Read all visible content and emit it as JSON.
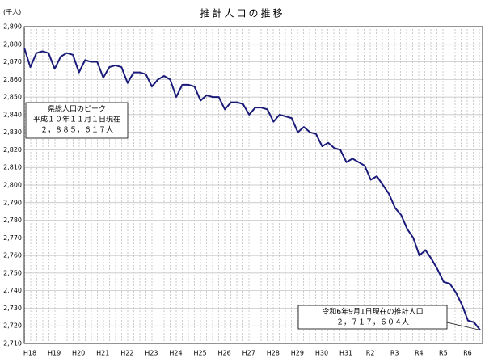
{
  "chart_data": {
    "type": "line",
    "title": "推計人口の推移",
    "y_unit_label": "(千人)",
    "categories": [
      "H18",
      null,
      null,
      null,
      "H19",
      null,
      null,
      null,
      "H20",
      null,
      null,
      null,
      "H21",
      null,
      null,
      null,
      "H22",
      null,
      null,
      null,
      "H23",
      null,
      null,
      null,
      "H24",
      null,
      null,
      null,
      "H25",
      null,
      null,
      null,
      "H26",
      null,
      null,
      null,
      "H27",
      null,
      null,
      null,
      "H28",
      null,
      null,
      null,
      "H29",
      null,
      null,
      null,
      "H30",
      null,
      null,
      null,
      "H31",
      null,
      null,
      null,
      "R2",
      null,
      null,
      null,
      "R3",
      null,
      null,
      null,
      "R4",
      null,
      null,
      null,
      "R5",
      null,
      null,
      null,
      "R6",
      null,
      null,
      null
    ],
    "values": [
      2878,
      2867,
      2875,
      2876,
      2875,
      2866,
      2873,
      2875,
      2874,
      2864,
      2871,
      2870,
      2870,
      2861,
      2867,
      2868,
      2867,
      2858,
      2864,
      2864,
      2863,
      2856,
      2860,
      2862,
      2860,
      2850,
      2857,
      2857,
      2856,
      2848,
      2851,
      2850,
      2850,
      2843,
      2847,
      2847,
      2846,
      2840,
      2844,
      2844,
      2843,
      2836,
      2840,
      2839,
      2838,
      2830,
      2833,
      2830,
      2829,
      2822,
      2824,
      2821,
      2820,
      2813,
      2815,
      2813,
      2811,
      2803,
      2805,
      2800,
      2795,
      2787,
      2783,
      2775,
      2770,
      2760,
      2763,
      2758,
      2752,
      2745,
      2744,
      2739,
      2732,
      2723,
      2722,
      2717.604
    ],
    "color": "#1a1a7a",
    "ylim": [
      2710,
      2890
    ],
    "yticks": [
      {
        "value": 2710,
        "label": "2,710"
      },
      {
        "value": 2720,
        "label": "2,720"
      },
      {
        "value": 2730,
        "label": "2,730"
      },
      {
        "value": 2740,
        "label": "2,740"
      },
      {
        "value": 2750,
        "label": "2,750"
      },
      {
        "value": 2760,
        "label": "2,760"
      },
      {
        "value": 2770,
        "label": "2,770"
      },
      {
        "value": 2780,
        "label": "2,780"
      },
      {
        "value": 2790,
        "label": "2,790"
      },
      {
        "value": 2800,
        "label": "2,800"
      },
      {
        "value": 2810,
        "label": "2,810"
      },
      {
        "value": 2820,
        "label": "2,820"
      },
      {
        "value": 2830,
        "label": "2,830"
      },
      {
        "value": 2840,
        "label": "2,840"
      },
      {
        "value": 2850,
        "label": "2,850"
      },
      {
        "value": 2860,
        "label": "2,860"
      },
      {
        "value": 2870,
        "label": "2,870"
      },
      {
        "value": 2880,
        "label": "2,880"
      },
      {
        "value": 2890,
        "label": "2,890"
      }
    ],
    "grid": true,
    "annotations": [
      {
        "lines": [
          "県総人口のピーク",
          "平成１０年１１月１日現在",
          "２，８８５，６１７人"
        ]
      },
      {
        "lines": [
          "令和6年9月1日現在の推計人口",
          "２，７１７，６０４人"
        ]
      }
    ]
  }
}
